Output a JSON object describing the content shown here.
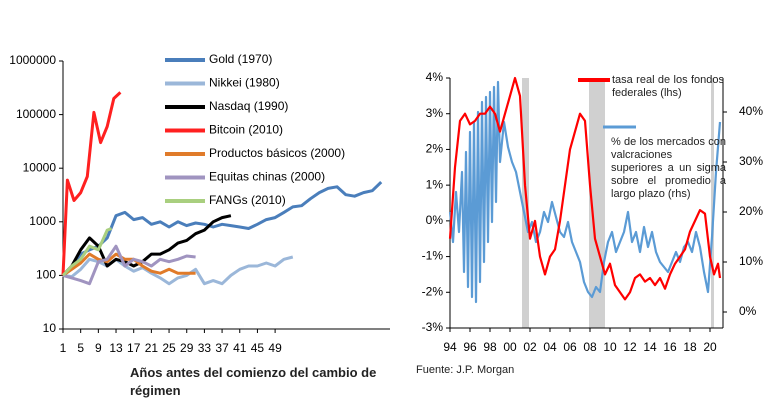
{
  "chart_data": [
    {
      "type": "line",
      "log_scale": true,
      "grid": false,
      "legend": "upper right",
      "x_label": "Años antes del comienzo del cambio de régimen",
      "xlim": [
        1,
        75
      ],
      "xticks": [
        1,
        5,
        9,
        13,
        17,
        21,
        25,
        29,
        33,
        37,
        41,
        45,
        49
      ],
      "ylim": [
        10,
        1000000
      ],
      "yticks": [
        10,
        100,
        1000,
        10000,
        100000,
        1000000
      ],
      "series": [
        {
          "name": "Gold (1970)",
          "color": "#4a7ebb",
          "x": [
            1,
            3,
            5,
            7,
            9,
            11,
            13,
            15,
            17,
            19,
            21,
            23,
            25,
            27,
            29,
            31,
            33,
            35,
            37,
            39,
            41,
            43,
            45,
            47,
            49,
            51,
            53,
            55,
            57,
            59,
            61,
            63,
            65,
            67,
            69,
            71,
            73
          ],
          "values": [
            100,
            150,
            250,
            300,
            350,
            500,
            1300,
            1500,
            1100,
            1200,
            900,
            1000,
            800,
            1000,
            850,
            950,
            900,
            800,
            900,
            850,
            800,
            750,
            900,
            1100,
            1200,
            1500,
            1900,
            2000,
            2700,
            3500,
            4200,
            4500,
            3200,
            3000,
            3500,
            3800,
            5500
          ]
        },
        {
          "name": "Nikkei (1980)",
          "color": "#9bb7d9",
          "x": [
            1,
            3,
            5,
            7,
            9,
            11,
            13,
            15,
            17,
            19,
            21,
            23,
            25,
            27,
            29,
            31,
            33,
            35,
            37,
            39,
            41,
            43,
            45,
            47,
            49,
            51,
            53
          ],
          "values": [
            100,
            95,
            130,
            200,
            180,
            150,
            200,
            150,
            120,
            140,
            110,
            90,
            70,
            90,
            100,
            130,
            70,
            80,
            70,
            100,
            130,
            150,
            150,
            170,
            150,
            200,
            220
          ]
        },
        {
          "name": "Nasdaq (1990)",
          "color": "#000000",
          "x": [
            1,
            3,
            5,
            7,
            9,
            11,
            13,
            15,
            17,
            19,
            21,
            23,
            25,
            27,
            29,
            31,
            33,
            35,
            37,
            39
          ],
          "values": [
            100,
            150,
            300,
            500,
            350,
            150,
            200,
            180,
            150,
            180,
            250,
            250,
            300,
            400,
            450,
            600,
            700,
            1000,
            1200,
            1300
          ]
        },
        {
          "name": "Bitcoin (2010)",
          "color": "#ff2020",
          "x": [
            1,
            2,
            3.5,
            5,
            6.5,
            8,
            9.5,
            11,
            12.5,
            14
          ],
          "values": [
            100,
            6000,
            2500,
            3500,
            7000,
            110000,
            30000,
            60000,
            200000,
            260000
          ]
        },
        {
          "name": "Productos básicos (2000)",
          "color": "#e07b2a",
          "x": [
            1,
            3,
            5,
            7,
            9,
            11,
            13,
            15,
            17,
            19,
            21,
            23,
            25,
            27,
            29,
            31
          ],
          "values": [
            100,
            130,
            170,
            250,
            200,
            180,
            250,
            200,
            200,
            150,
            120,
            110,
            130,
            110,
            110,
            110
          ]
        },
        {
          "name": "Equitas chinas (2000)",
          "color": "#a094c0",
          "x": [
            1,
            3,
            5,
            7,
            9,
            11,
            13,
            15,
            17,
            19,
            21,
            23,
            25,
            27,
            29,
            31
          ],
          "values": [
            100,
            90,
            80,
            70,
            180,
            200,
            350,
            150,
            200,
            180,
            150,
            200,
            180,
            200,
            230,
            220
          ]
        },
        {
          "name": "FANGs (2010)",
          "color": "#a9cf7f",
          "x": [
            1,
            3,
            5,
            7,
            9,
            11,
            12
          ],
          "values": [
            100,
            150,
            200,
            350,
            300,
            700,
            750
          ]
        }
      ]
    },
    {
      "type": "line",
      "grid": false,
      "legend": "upper right",
      "source": "Fuente: J.P. Morgan",
      "xlim": [
        1994,
        2021.3
      ],
      "xticks": [
        {
          "value": 1994,
          "label": "94"
        },
        {
          "value": 1996,
          "label": "96"
        },
        {
          "value": 1998,
          "label": "98"
        },
        {
          "value": 2000,
          "label": "00"
        },
        {
          "value": 2002,
          "label": "02"
        },
        {
          "value": 2004,
          "label": "04"
        },
        {
          "value": 2006,
          "label": "06"
        },
        {
          "value": 2008,
          "label": "08"
        },
        {
          "value": 2010,
          "label": "10"
        },
        {
          "value": 2012,
          "label": "12"
        },
        {
          "value": 2014,
          "label": "14"
        },
        {
          "value": 2016,
          "label": "16"
        },
        {
          "value": 2018,
          "label": "18"
        },
        {
          "value": 2020,
          "label": "20"
        }
      ],
      "ylim": [
        -3,
        4
      ],
      "yticks": [
        {
          "value": -3,
          "label": "-3%"
        },
        {
          "value": -2,
          "label": "-2%"
        },
        {
          "value": -1,
          "label": "-1%"
        },
        {
          "value": 0,
          "label": "0%"
        },
        {
          "value": 1,
          "label": "1%"
        },
        {
          "value": 2,
          "label": "2%"
        },
        {
          "value": 3,
          "label": "3%"
        },
        {
          "value": 4,
          "label": "4%"
        }
      ],
      "y2lim": [
        -3.2,
        46.8
      ],
      "y2ticks": [
        {
          "value": 0,
          "label": "0%"
        },
        {
          "value": 10,
          "label": "10%"
        },
        {
          "value": 20,
          "label": "20%"
        },
        {
          "value": 30,
          "label": "30%"
        },
        {
          "value": 40,
          "label": "40%"
        }
      ],
      "shaded_periods": [
        [
          2001.2,
          2001.9
        ],
        [
          2007.9,
          2009.5
        ],
        [
          2020.1,
          2020.4
        ]
      ],
      "shade_color": "#d0d0d0",
      "series": [
        {
          "name": "% de los mercados con valcraciones superiores a un sigma sobre el promedio a largo plazo (rhs)",
          "color": "#5b9bd5",
          "axis": "y2",
          "x": [
            1994,
            1994.3,
            1994.6,
            1994.9,
            1995.2,
            1995.4,
            1995.6,
            1995.8,
            1996,
            1996.2,
            1996.4,
            1996.6,
            1996.8,
            1997,
            1997.2,
            1997.4,
            1997.6,
            1997.8,
            1998,
            1998.2,
            1998.4,
            1998.6,
            1998.8,
            1999,
            1999.4,
            1999.8,
            2000.2,
            2000.6,
            2001,
            2001.4,
            2001.8,
            2002.2,
            2002.6,
            2003,
            2003.4,
            2003.8,
            2004.2,
            2004.6,
            2005,
            2005.4,
            2005.8,
            2006.2,
            2006.6,
            2007,
            2007.4,
            2007.8,
            2008.2,
            2008.6,
            2009,
            2009.4,
            2009.8,
            2010.2,
            2010.6,
            2011,
            2011.4,
            2011.8,
            2012.2,
            2012.6,
            2013,
            2013.4,
            2013.8,
            2014.2,
            2014.6,
            2015,
            2015.4,
            2015.8,
            2016.2,
            2016.6,
            2017,
            2017.4,
            2017.8,
            2018.2,
            2018.6,
            2019,
            2019.4,
            2019.8,
            2020.2,
            2020.6,
            2021
          ],
          "values": [
            20,
            14,
            24,
            16,
            28,
            8,
            32,
            5,
            36,
            3,
            38,
            2,
            40,
            6,
            42,
            10,
            43,
            14,
            44,
            18,
            45,
            22,
            46,
            30,
            38,
            33,
            30,
            28,
            24,
            20,
            16,
            18,
            14,
            16,
            20,
            18,
            22,
            19,
            16,
            15,
            18,
            14,
            12,
            10,
            6,
            4,
            3,
            5,
            4,
            10,
            14,
            16,
            12,
            14,
            16,
            20,
            14,
            16,
            12,
            17,
            13,
            16,
            12,
            10,
            9,
            8,
            10,
            12,
            10,
            13,
            14,
            12,
            16,
            13,
            8,
            4,
            15,
            28,
            38
          ]
        },
        {
          "name": "tasa real de los fondos federales (lhs)",
          "color": "#ff0000",
          "x": [
            1994,
            1994.5,
            1995,
            1995.5,
            1996,
            1996.5,
            1997,
            1997.5,
            1998,
            1998.5,
            1999,
            1999.5,
            2000,
            2000.5,
            2001,
            2001.5,
            2002,
            2002.5,
            2003,
            2003.5,
            2004,
            2004.5,
            2005,
            2005.5,
            2006,
            2006.5,
            2007,
            2007.5,
            2008,
            2008.5,
            2009,
            2009.5,
            2010,
            2010.5,
            2011,
            2011.5,
            2012,
            2012.5,
            2013,
            2013.5,
            2014,
            2014.5,
            2015,
            2015.5,
            2016,
            2016.5,
            2017,
            2017.5,
            2018,
            2018.5,
            2019,
            2019.5,
            2020,
            2020.4,
            2020.8,
            2021
          ],
          "values": [
            -0.5,
            1.5,
            2.8,
            3.0,
            2.7,
            2.8,
            3.0,
            3.0,
            3.2,
            3.0,
            2.5,
            3.0,
            3.5,
            4.0,
            3.5,
            1.0,
            -0.5,
            0.0,
            -1.0,
            -1.5,
            -1.0,
            -0.8,
            0.0,
            1.0,
            2.0,
            2.5,
            3.0,
            2.8,
            1.0,
            -0.5,
            -1.0,
            -1.5,
            -1.2,
            -1.8,
            -2.0,
            -2.2,
            -2.0,
            -1.6,
            -1.5,
            -1.7,
            -1.6,
            -1.8,
            -1.6,
            -1.9,
            -1.5,
            -1.2,
            -1.0,
            -0.8,
            -0.3,
            0.0,
            0.3,
            0.2,
            -1.0,
            -1.5,
            -1.2,
            -1.6
          ]
        }
      ]
    }
  ]
}
